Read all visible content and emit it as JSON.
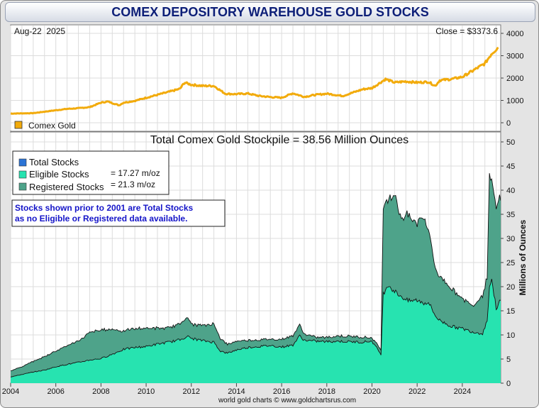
{
  "title": "COMEX DEPOSITORY WAREHOUSE GOLD STOCKS",
  "footer": "world gold charts © www.goldchartsrus.com",
  "colors": {
    "gold": "#f2ab0c",
    "eligible": "#27e3b0",
    "registered": "#4ea38a",
    "total": "#2b74d6"
  },
  "chart_data": [
    {
      "type": "line",
      "name": "price",
      "date_label": "Aug-22  2025",
      "close_label": "Close = $3373.6",
      "legend": [
        "Comex Gold"
      ],
      "ylim": [
        0,
        4000
      ],
      "yticks": [
        "0",
        "1000",
        "2000",
        "3000",
        "4000"
      ],
      "series": [
        {
          "name": "Comex Gold",
          "x": [
            2004.0,
            2005.0,
            2006.0,
            2006.5,
            2007.0,
            2007.5,
            2008.0,
            2008.3,
            2008.8,
            2009.0,
            2009.5,
            2010.0,
            2010.5,
            2011.0,
            2011.5,
            2011.7,
            2012.0,
            2012.5,
            2013.0,
            2013.5,
            2014.0,
            2014.5,
            2015.0,
            2015.5,
            2016.0,
            2016.5,
            2017.0,
            2017.5,
            2018.0,
            2018.7,
            2019.0,
            2019.6,
            2020.0,
            2020.6,
            2021.0,
            2021.5,
            2022.0,
            2022.5,
            2022.8,
            2023.0,
            2023.5,
            2024.0,
            2024.5,
            2025.0,
            2025.3,
            2025.6
          ],
          "y": [
            410,
            430,
            560,
            620,
            650,
            700,
            900,
            950,
            780,
            900,
            980,
            1120,
            1250,
            1380,
            1520,
            1800,
            1700,
            1650,
            1650,
            1300,
            1280,
            1310,
            1200,
            1150,
            1120,
            1320,
            1160,
            1250,
            1300,
            1200,
            1300,
            1500,
            1550,
            1950,
            1800,
            1850,
            1800,
            1830,
            1650,
            1900,
            1950,
            2050,
            2350,
            2650,
            3100,
            3380
          ]
        }
      ]
    },
    {
      "type": "area",
      "name": "stocks",
      "title": "Total Comex Gold Stockpile = 38.56 Million Ounces",
      "ylabel": "Millions of Ounces",
      "ylim": [
        0,
        50
      ],
      "yticks": [
        "0",
        "5",
        "10",
        "15",
        "20",
        "25",
        "30",
        "35",
        "40",
        "45",
        "50"
      ],
      "xlim": [
        2004,
        2025.7
      ],
      "xticks": [
        "2004",
        "2006",
        "2008",
        "2010",
        "2012",
        "2014",
        "2016",
        "2018",
        "2020",
        "2022",
        "2024"
      ],
      "legend": [
        "Total Stocks",
        "Eligible Stocks",
        "Registered Stocks"
      ],
      "eligible_value": "= 17.27 m/oz",
      "registered_value": "= 21.3 m/oz",
      "note": "Stocks shown prior to 2001 are Total Stocks as no Eligible or Registered data available.",
      "x": [
        2004.0,
        2004.5,
        2005.0,
        2005.5,
        2006.0,
        2006.5,
        2007.0,
        2007.5,
        2008.0,
        2008.5,
        2009.0,
        2009.5,
        2010.0,
        2010.5,
        2011.0,
        2011.5,
        2011.8,
        2012.0,
        2012.5,
        2013.0,
        2013.3,
        2013.6,
        2014.0,
        2014.5,
        2015.0,
        2015.5,
        2016.0,
        2016.5,
        2016.8,
        2017.0,
        2017.5,
        2018.0,
        2018.5,
        2019.0,
        2019.5,
        2020.0,
        2020.4,
        2020.5,
        2020.7,
        2021.0,
        2021.3,
        2021.6,
        2022.0,
        2022.3,
        2022.5,
        2022.8,
        2023.0,
        2023.5,
        2024.0,
        2024.5,
        2024.9,
        2025.1,
        2025.2,
        2025.3,
        2025.5,
        2025.7
      ],
      "series": [
        {
          "name": "Eligible Stocks",
          "values": [
            1.3,
            1.8,
            2.3,
            2.7,
            3.4,
            3.9,
            4.3,
            4.8,
            5.1,
            6.0,
            7.0,
            7.4,
            7.6,
            8.1,
            8.5,
            9.0,
            9.7,
            9.3,
            8.8,
            8.5,
            6.6,
            6.2,
            6.9,
            7.4,
            7.6,
            7.8,
            7.5,
            7.9,
            9.8,
            8.9,
            8.7,
            8.6,
            8.7,
            8.6,
            8.5,
            8.7,
            6.0,
            18.5,
            20.5,
            19.0,
            18.0,
            17.0,
            17.2,
            16.6,
            16.8,
            14.0,
            13.0,
            11.8,
            11.3,
            10.6,
            10.3,
            13.0,
            20.0,
            21.5,
            15.5,
            17.27
          ]
        },
        {
          "name": "Registered Stocks",
          "values": [
            1.3,
            1.6,
            2.2,
            2.8,
            3.3,
            3.9,
            4.4,
            5.7,
            5.9,
            5.2,
            3.8,
            3.9,
            3.8,
            3.3,
            2.9,
            3.4,
            3.9,
            3.0,
            3.1,
            3.8,
            2.6,
            1.8,
            1.8,
            1.5,
            1.4,
            1.3,
            1.6,
            1.9,
            2.3,
            1.3,
            0.8,
            0.9,
            1.1,
            1.1,
            1.1,
            0.7,
            1.0,
            17.8,
            17.5,
            20.5,
            16.0,
            18.0,
            16.0,
            18.0,
            15.0,
            10.0,
            9.0,
            8.0,
            6.2,
            5.5,
            8.0,
            9.0,
            23.0,
            20.0,
            21.0,
            21.3
          ]
        }
      ]
    }
  ]
}
